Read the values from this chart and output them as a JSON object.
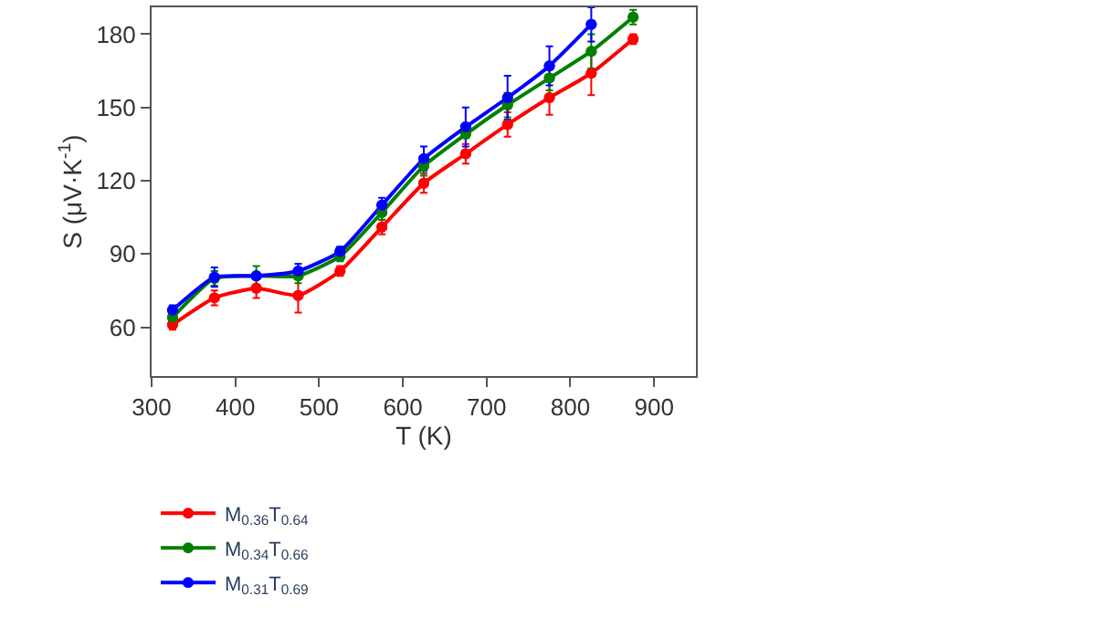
{
  "chart_data": {
    "type": "line",
    "xlabel": "T (K)",
    "ylabel": "S (μV·K$^{-1}$)",
    "x": [
      325,
      375,
      425,
      475,
      525,
      575,
      625,
      675,
      725,
      775,
      825,
      875
    ],
    "xlim": [
      300,
      950
    ],
    "xticks": [
      300,
      400,
      500,
      600,
      700,
      800,
      900
    ],
    "ylim": [
      40,
      191
    ],
    "yticks": [
      60,
      90,
      120,
      150,
      180
    ],
    "marker": "circle",
    "line_style": "solid",
    "legend": "bottom left",
    "series": [
      {
        "name": "M$_{0.36}$T$_{0.64}$",
        "color": "#ff0000",
        "values": [
          61,
          72,
          76,
          73,
          83,
          101,
          119,
          131,
          143,
          154,
          164,
          178
        ],
        "errors": [
          2,
          3,
          4,
          7,
          2,
          3,
          4,
          4,
          5,
          7,
          9,
          2
        ]
      },
      {
        "name": "M$_{0.34}$T$_{0.66}$",
        "color": "#008000",
        "values": [
          64,
          80,
          81,
          81,
          89,
          107,
          126,
          139,
          151,
          162,
          173,
          187
        ],
        "errors": [
          null,
          3,
          4,
          3,
          2,
          3,
          4,
          null,
          5,
          5,
          7,
          3
        ]
      },
      {
        "name": "M$_{0.31}$T$_{0.69}$",
        "color": "#0000ff",
        "values": [
          67,
          80.5,
          81,
          83,
          91,
          110,
          129,
          142,
          154,
          167,
          184,
          null
        ],
        "errors": [
          2,
          4,
          null,
          3,
          2,
          3,
          5,
          8,
          9,
          8,
          7,
          null
        ]
      }
    ]
  }
}
